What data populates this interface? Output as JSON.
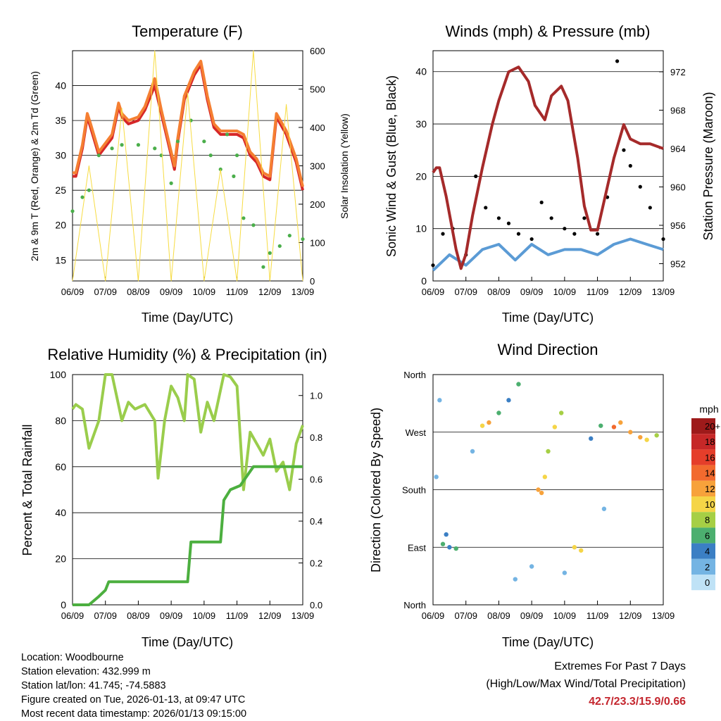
{
  "x_tick_labels": [
    "06/09",
    "07/09",
    "08/09",
    "09/09",
    "10/09",
    "11/09",
    "12/09",
    "13/09"
  ],
  "x_axis_label": "Time (Day/UTC)",
  "chart_data": [
    {
      "type": "line",
      "title": "Temperature (F)",
      "xlabel": "Time (Day/UTC)",
      "ylabel": "2m & 9m T (Red, Orange) & 2m Td (Green)",
      "y2label": "Solar Insolation (Yellow)",
      "x_days": [
        0,
        7
      ],
      "ylim": [
        12,
        45
      ],
      "y2lim": [
        0,
        600
      ],
      "yticks": [
        15,
        20,
        25,
        30,
        35,
        40
      ],
      "y2ticks": [
        0,
        100,
        200,
        300,
        400,
        500,
        600
      ],
      "series": [
        {
          "name": "2m T",
          "color": "#d62728",
          "axis": "left",
          "t": [
            0,
            0.1,
            0.3,
            0.45,
            0.55,
            0.8,
            1.2,
            1.4,
            1.5,
            1.7,
            2,
            2.2,
            2.5,
            2.7,
            3,
            3.1,
            3.2,
            3.4,
            3.7,
            3.9,
            4.1,
            4.3,
            4.5,
            4.8,
            5,
            5.2,
            5.4,
            5.6,
            5.8,
            6,
            6.2,
            6.5,
            6.8,
            7
          ],
          "v": [
            27,
            27,
            31,
            35.5,
            34,
            30,
            32.5,
            37,
            35.5,
            34.5,
            35,
            36.5,
            40,
            36,
            30,
            28,
            32,
            38,
            41.5,
            43,
            38,
            34,
            33,
            33,
            33,
            32.5,
            30,
            29,
            27,
            26.5,
            35.5,
            33,
            29,
            25
          ]
        },
        {
          "name": "9m T",
          "color": "#f57f32",
          "axis": "left",
          "t": [
            0,
            0.1,
            0.3,
            0.45,
            0.55,
            0.8,
            1.2,
            1.4,
            1.5,
            1.7,
            2,
            2.2,
            2.5,
            2.7,
            3,
            3.1,
            3.2,
            3.4,
            3.7,
            3.9,
            4.1,
            4.3,
            4.5,
            4.8,
            5,
            5.2,
            5.4,
            5.6,
            5.8,
            6,
            6.2,
            6.5,
            6.8,
            7
          ],
          "v": [
            27.5,
            27.5,
            31.5,
            36,
            34.5,
            30.5,
            33,
            37.5,
            36,
            35,
            35.5,
            37,
            41,
            36.5,
            30.5,
            28.5,
            32.5,
            38.5,
            42,
            43.5,
            38.5,
            34.5,
            33.5,
            33.5,
            33.5,
            33,
            30.5,
            29.5,
            27.5,
            27,
            36,
            33.5,
            29.5,
            25.5
          ]
        },
        {
          "name": "2m Td",
          "color": "#4aae4a",
          "axis": "left",
          "style": "dots",
          "t": [
            0,
            0.3,
            0.5,
            0.8,
            1.2,
            1.5,
            2,
            2.5,
            2.7,
            3,
            3.2,
            3.6,
            4,
            4.2,
            4.5,
            4.7,
            4.9,
            5,
            5.2,
            5.5,
            5.8,
            6,
            6.3,
            6.6,
            7
          ],
          "v": [
            22,
            24,
            25,
            30,
            31,
            31.5,
            31.5,
            31,
            30,
            26,
            32,
            35,
            32,
            30,
            28,
            33,
            27,
            30,
            21,
            20,
            14,
            16,
            17,
            18.5,
            18
          ]
        },
        {
          "name": "Solar Insolation",
          "color": "#f7dc42",
          "axis": "right",
          "style": "thin",
          "t": [
            0,
            0.5,
            1,
            1.5,
            2,
            2.5,
            3,
            3.5,
            4,
            4.5,
            5,
            5.5,
            6,
            6.5,
            7
          ],
          "v": [
            0,
            300,
            0,
            450,
            0,
            600,
            0,
            490,
            0,
            290,
            0,
            600,
            0,
            460,
            0
          ]
        }
      ]
    },
    {
      "type": "line",
      "title": "Winds (mph) & Pressure (mb)",
      "xlabel": "Time (Day/UTC)",
      "ylabel": "Sonic Wind & Gust (Blue, Black)",
      "y2label": "Station Pressure (Maroon)",
      "x_days": [
        0,
        7
      ],
      "ylim": [
        0,
        44
      ],
      "y2lim": [
        950.2,
        974.2
      ],
      "yticks": [
        0,
        10,
        20,
        30,
        40
      ],
      "y2ticks": [
        952,
        956,
        960,
        964,
        968,
        972
      ],
      "series": [
        {
          "name": "Sonic Wind",
          "color": "#5b9bd5",
          "axis": "left",
          "t": [
            0,
            0.5,
            1,
            1.5,
            2,
            2.5,
            3,
            3.5,
            4,
            4.5,
            5,
            5.5,
            6,
            6.5,
            7
          ],
          "v": [
            2,
            5,
            3,
            6,
            7,
            4,
            7,
            5,
            6,
            6,
            5,
            7,
            8,
            7,
            6
          ]
        },
        {
          "name": "Gust",
          "color": "#000000",
          "axis": "left",
          "style": "dots",
          "t": [
            0,
            0.3,
            0.6,
            1,
            1.3,
            1.6,
            2,
            2.3,
            2.6,
            3,
            3.3,
            3.6,
            4,
            4.3,
            4.6,
            5,
            5.3,
            5.6,
            5.8,
            6,
            6.3,
            6.6,
            7
          ],
          "v": [
            3,
            9,
            10,
            5,
            20,
            14,
            12,
            11,
            9,
            8,
            15,
            12,
            10,
            9,
            12,
            9,
            16,
            42,
            25,
            22,
            18,
            14,
            8
          ]
        },
        {
          "name": "Station Pressure",
          "color": "#a52a2a",
          "axis": "right",
          "t": [
            0,
            0.1,
            0.2,
            0.4,
            0.7,
            0.85,
            1,
            1.2,
            1.5,
            1.8,
            2,
            2.3,
            2.6,
            2.9,
            3.1,
            3.4,
            3.6,
            3.9,
            4.1,
            4.4,
            4.6,
            4.8,
            5,
            5.2,
            5.5,
            5.8,
            6,
            6.3,
            6.6,
            7
          ],
          "v": [
            961.5,
            962,
            962,
            959,
            953.5,
            951.5,
            953,
            957,
            962,
            966.5,
            969,
            972,
            972.5,
            971,
            968.5,
            967,
            969.5,
            970.5,
            969,
            963,
            958,
            955.5,
            955.5,
            958.5,
            963,
            966.5,
            965,
            964.5,
            964.5,
            964
          ]
        }
      ]
    },
    {
      "type": "line",
      "title": "Relative Humidity (%) & Precipitation (in)",
      "xlabel": "Time (Day/UTC)",
      "ylabel": "Percent & Total Rainfall",
      "x_days": [
        0,
        7
      ],
      "ylim": [
        0,
        100
      ],
      "y2lim": [
        0,
        1.1
      ],
      "yticks": [
        0,
        20,
        40,
        60,
        80,
        100
      ],
      "y2ticks": [
        0.0,
        0.2,
        0.4,
        0.6,
        0.8,
        1.0
      ],
      "series": [
        {
          "name": "Relative Humidity",
          "color": "#9acd4c",
          "axis": "left",
          "t": [
            0,
            0.1,
            0.3,
            0.5,
            0.8,
            1,
            1.2,
            1.5,
            1.7,
            1.9,
            2.2,
            2.5,
            2.6,
            2.8,
            3,
            3.2,
            3.4,
            3.5,
            3.7,
            3.9,
            4.1,
            4.3,
            4.6,
            4.8,
            5,
            5.2,
            5.4,
            5.6,
            5.8,
            6,
            6.2,
            6.4,
            6.6,
            6.8,
            7
          ],
          "v": [
            85,
            87,
            85,
            68,
            80,
            100,
            100,
            80,
            88,
            85,
            87,
            80,
            55,
            80,
            95,
            90,
            80,
            100,
            98,
            75,
            88,
            80,
            100,
            99,
            95,
            50,
            75,
            70,
            65,
            72,
            58,
            62,
            50,
            70,
            78
          ]
        },
        {
          "name": "Total Precipitation",
          "color": "#4caf3f",
          "axis": "right",
          "t": [
            0,
            0.5,
            0.8,
            1,
            1.1,
            3.5,
            3.6,
            4.5,
            4.6,
            4.8,
            5.1,
            5.5,
            6,
            7
          ],
          "v": [
            0,
            0,
            0.04,
            0.07,
            0.11,
            0.11,
            0.3,
            0.3,
            0.5,
            0.55,
            0.57,
            0.66,
            0.66,
            0.66
          ]
        }
      ]
    },
    {
      "type": "scatter",
      "title": "Wind Direction",
      "xlabel": "Time (Day/UTC)",
      "ylabel": "Direction (Colored By Speed)",
      "x_days": [
        0,
        7
      ],
      "ylim": [
        0,
        360
      ],
      "ytick_labels": [
        "North",
        "East",
        "South",
        "West",
        "North"
      ],
      "points": [
        {
          "t": 0.3,
          "dir": 95,
          "speed": 6
        },
        {
          "t": 0.5,
          "dir": 90,
          "speed": 4
        },
        {
          "t": 0.7,
          "dir": 88,
          "speed": 5
        },
        {
          "t": 0.4,
          "dir": 110,
          "speed": 3
        },
        {
          "t": 1.2,
          "dir": 240,
          "speed": 2
        },
        {
          "t": 1.5,
          "dir": 280,
          "speed": 10
        },
        {
          "t": 1.7,
          "dir": 285,
          "speed": 11
        },
        {
          "t": 2.0,
          "dir": 300,
          "speed": 5
        },
        {
          "t": 2.3,
          "dir": 320,
          "speed": 4
        },
        {
          "t": 2.6,
          "dir": 345,
          "speed": 6
        },
        {
          "t": 3.2,
          "dir": 180,
          "speed": 12
        },
        {
          "t": 3.3,
          "dir": 175,
          "speed": 11
        },
        {
          "t": 3.4,
          "dir": 200,
          "speed": 9
        },
        {
          "t": 3.5,
          "dir": 240,
          "speed": 8
        },
        {
          "t": 3.7,
          "dir": 278,
          "speed": 9
        },
        {
          "t": 3.9,
          "dir": 300,
          "speed": 7
        },
        {
          "t": 4.3,
          "dir": 90,
          "speed": 9
        },
        {
          "t": 4.5,
          "dir": 85,
          "speed": 10
        },
        {
          "t": 4.8,
          "dir": 260,
          "speed": 4
        },
        {
          "t": 5.1,
          "dir": 280,
          "speed": 6
        },
        {
          "t": 5.5,
          "dir": 278,
          "speed": 13
        },
        {
          "t": 5.7,
          "dir": 285,
          "speed": 12
        },
        {
          "t": 6.0,
          "dir": 270,
          "speed": 11
        },
        {
          "t": 6.3,
          "dir": 262,
          "speed": 12
        },
        {
          "t": 6.5,
          "dir": 258,
          "speed": 9
        },
        {
          "t": 6.8,
          "dir": 265,
          "speed": 7
        },
        {
          "t": 0.1,
          "dir": 200,
          "speed": 1
        },
        {
          "t": 2.5,
          "dir": 40,
          "speed": 2
        },
        {
          "t": 3.0,
          "dir": 60,
          "speed": 1
        },
        {
          "t": 4.0,
          "dir": 50,
          "speed": 2
        },
        {
          "t": 5.2,
          "dir": 150,
          "speed": 1
        },
        {
          "t": 0.2,
          "dir": 320,
          "speed": 1
        }
      ]
    }
  ],
  "speed_legend": {
    "title": "mph",
    "labels": [
      "20+",
      "18",
      "16",
      "14",
      "12",
      "10",
      "8",
      "6",
      "4",
      "2",
      "0"
    ],
    "colors": [
      "#9e1a1a",
      "#c62828",
      "#e53e2a",
      "#f26a2e",
      "#f7a23b",
      "#f5d547",
      "#a6cf45",
      "#4caf6f",
      "#3b7fc4",
      "#74b4e3",
      "#bfe2f6"
    ]
  },
  "footer": {
    "location": "Location: Woodbourne",
    "elevation": "Station elevation: 432.999 m",
    "latlon": "Station lat/lon: 41.745; -74.5883",
    "created": "Figure created on Tue, 2026-01-13, at 09:47 UTC",
    "recent": "Most recent data timestamp: 2026/01/13 09:15:00"
  },
  "extremes": {
    "title": "Extremes For Past 7 Days",
    "subtitle": "(High/Low/Max Wind/Total Precipitation)",
    "values": "42.7/23.3/15.9/0.66"
  }
}
